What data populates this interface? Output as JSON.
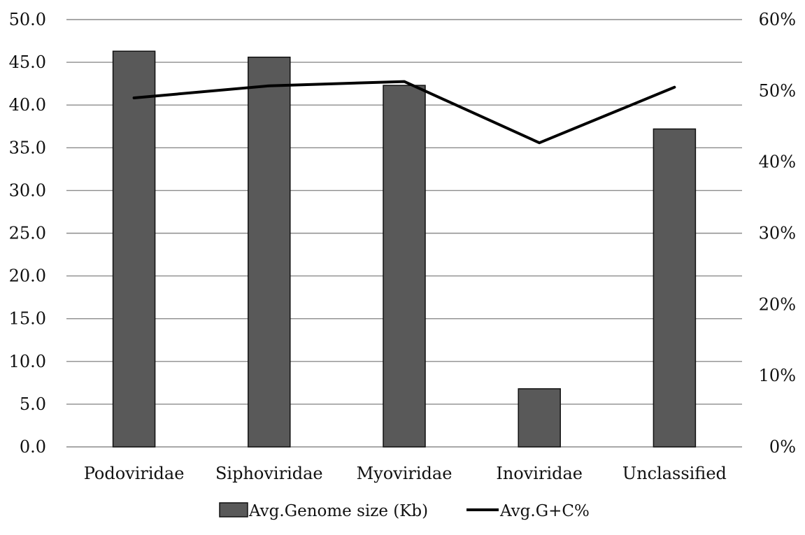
{
  "chart_data": {
    "type": "bar",
    "categories": [
      "Podoviridae",
      "Siphoviridae",
      "Myoviridae",
      "Inoviridae",
      "Unclassified"
    ],
    "series": [
      {
        "name": "Avg.Genome size (Kb)",
        "type": "bar",
        "axis": "left",
        "color": "#595959",
        "values": [
          46.3,
          45.6,
          42.3,
          6.8,
          37.2
        ]
      },
      {
        "name": "Avg.G+C%",
        "type": "line",
        "axis": "right",
        "color": "#000000",
        "values": [
          0.49,
          0.507,
          0.513,
          0.427,
          0.505
        ]
      }
    ],
    "left_axis": {
      "ylim": [
        0,
        50
      ],
      "ticks": [
        "0.0",
        "5.0",
        "10.0",
        "15.0",
        "20.0",
        "25.0",
        "30.0",
        "35.0",
        "40.0",
        "45.0",
        "50.0"
      ]
    },
    "right_axis": {
      "ylim": [
        0,
        0.6
      ],
      "ticks": [
        "0%",
        "10%",
        "20%",
        "30%",
        "40%",
        "50%",
        "60%"
      ]
    },
    "grid": true,
    "legend": "bottom",
    "title": "",
    "xlabel": "",
    "ylabel": ""
  }
}
